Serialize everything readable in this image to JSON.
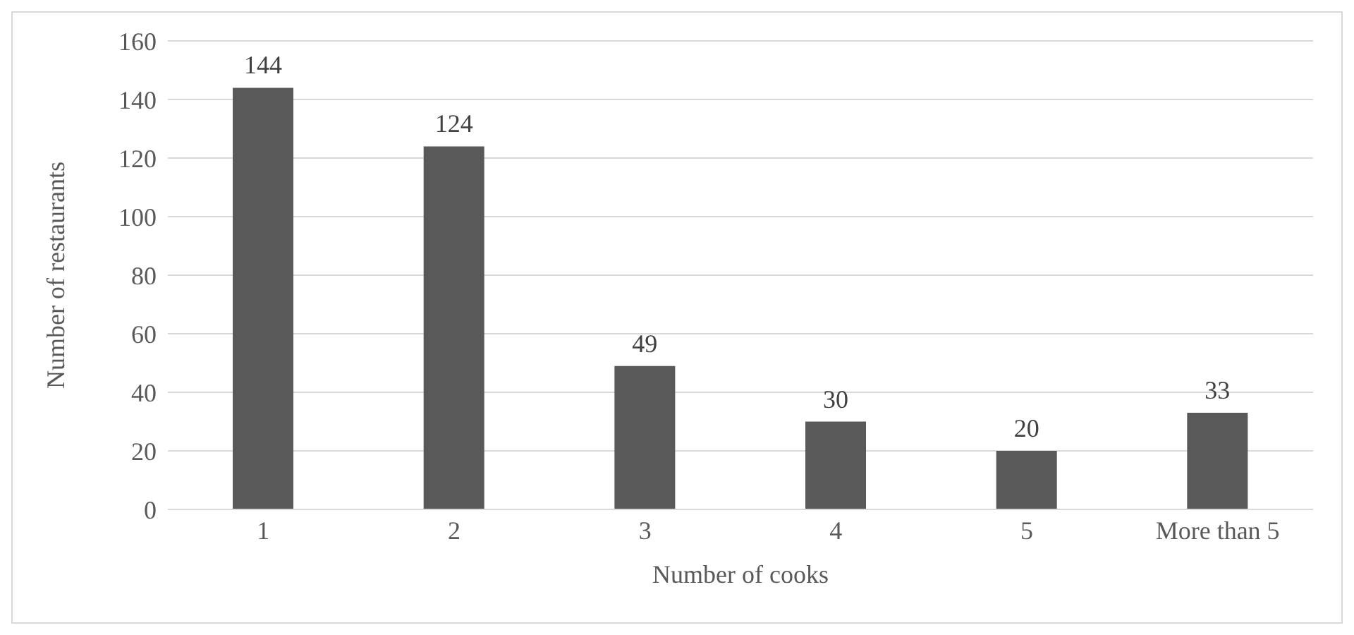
{
  "chart_data": {
    "type": "bar",
    "xlabel": "Number of cooks",
    "ylabel": "Number of restaurants",
    "categories": [
      "1",
      "2",
      "3",
      "4",
      "5",
      "More than 5"
    ],
    "values": [
      144,
      124,
      49,
      30,
      20,
      33
    ],
    "color": "#595959",
    "ylim": [
      0,
      160
    ],
    "yticks": [
      0,
      20,
      40,
      60,
      80,
      100,
      120,
      140,
      160
    ],
    "grid": "y",
    "data_labels": true
  }
}
